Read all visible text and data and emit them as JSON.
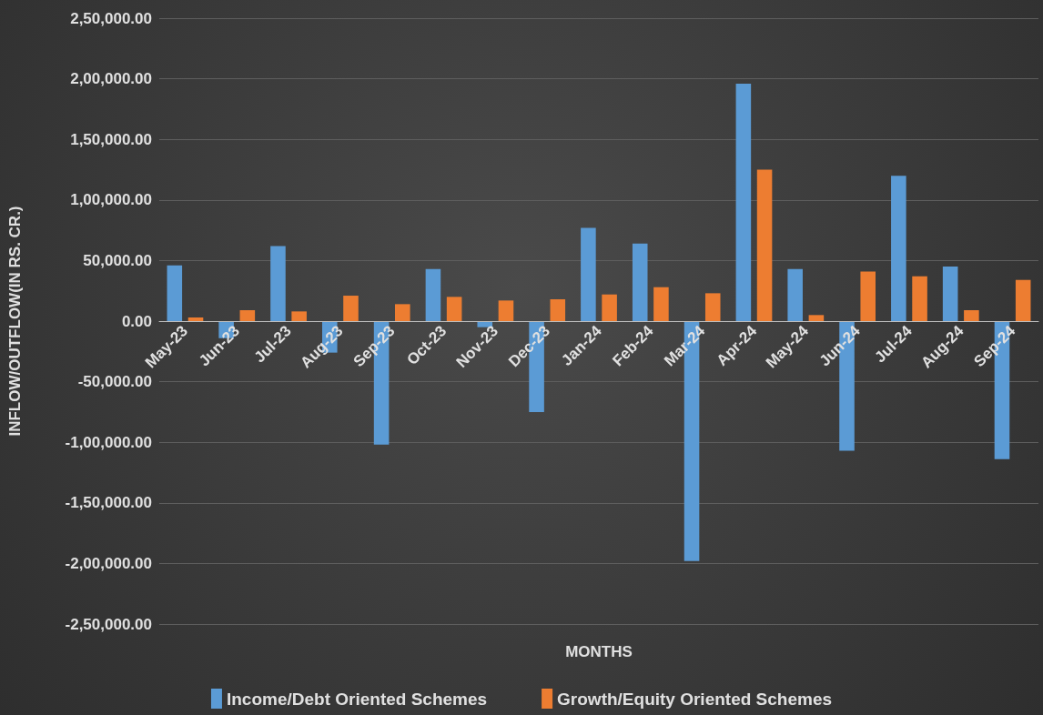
{
  "chart_data": {
    "type": "bar",
    "xlabel": "MONTHS",
    "ylabel": "INFLOW/OUTFLOW(IN RS. CR.)",
    "categories": [
      "May-23",
      "Jun-23",
      "Jul-23",
      "Aug-23",
      "Sep-23",
      "Oct-23",
      "Nov-23",
      "Dec-23",
      "Jan-24",
      "Feb-24",
      "Mar-24",
      "Apr-24",
      "May-24",
      "Jun-24",
      "Jul-24",
      "Aug-24",
      "Sep-24"
    ],
    "series": [
      {
        "name": "Income/Debt Oriented Schemes",
        "color": "#5b9bd5",
        "values": [
          46000,
          -14000,
          62000,
          -26000,
          -102000,
          43000,
          -5000,
          -75000,
          77000,
          64000,
          -198000,
          196000,
          43000,
          -107000,
          120000,
          45000,
          -114000
        ]
      },
      {
        "name": "Growth/Equity Oriented Schemes",
        "color": "#ed7d31",
        "values": [
          3000,
          9000,
          8000,
          21000,
          14000,
          20000,
          17000,
          18000,
          22000,
          28000,
          23000,
          125000,
          5000,
          41000,
          37000,
          9000,
          34000
        ]
      }
    ],
    "ylim": [
      -250000,
      250000
    ],
    "yticks": [
      {
        "value": -250000,
        "label": "-2,50,000.00"
      },
      {
        "value": -200000,
        "label": "-2,00,000.00"
      },
      {
        "value": -150000,
        "label": "-1,50,000.00"
      },
      {
        "value": -100000,
        "label": "-1,00,000.00"
      },
      {
        "value": -50000,
        "label": "-50,000.00"
      },
      {
        "value": 0,
        "label": "0.00"
      },
      {
        "value": 50000,
        "label": "50,000.00"
      },
      {
        "value": 100000,
        "label": "1,00,000.00"
      },
      {
        "value": 150000,
        "label": "1,50,000.00"
      },
      {
        "value": 200000,
        "label": "2,00,000.00"
      },
      {
        "value": 250000,
        "label": "2,50,000.00"
      }
    ],
    "grid": "y",
    "legend": "bottom"
  }
}
